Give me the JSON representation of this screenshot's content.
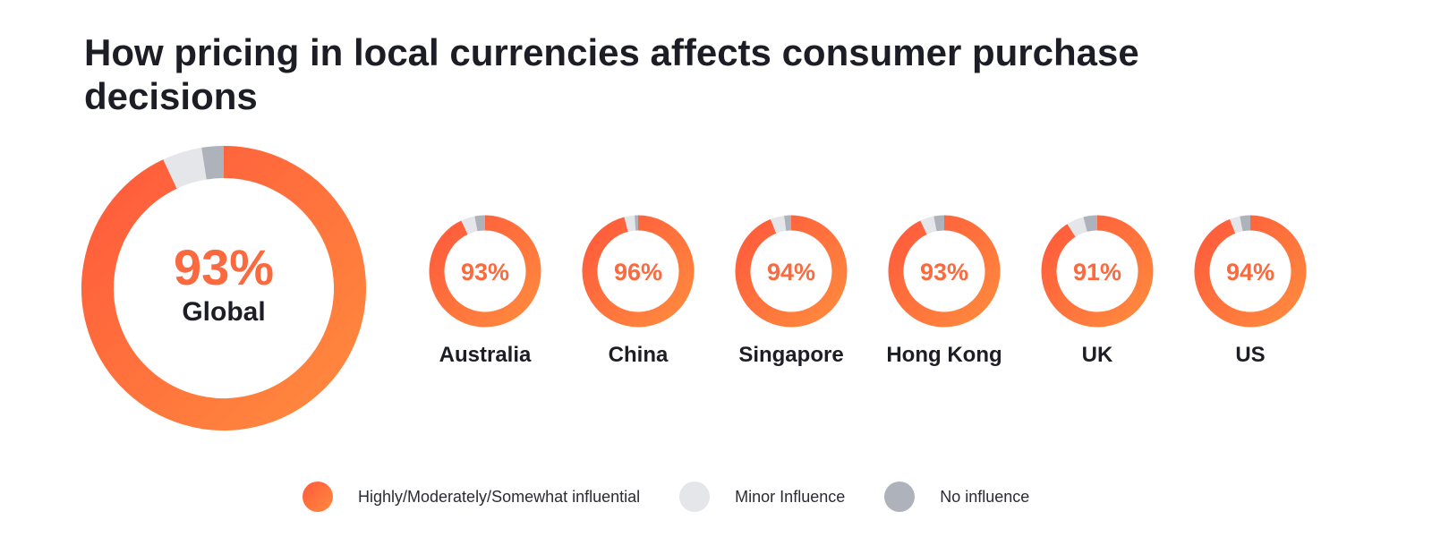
{
  "chart_data": {
    "type": "pie",
    "title": "How pricing in local currencies affects consumer purchase decisions",
    "colors": {
      "influential_start": "#ff5a3c",
      "influential_end": "#ff8a3d",
      "minor": "#e4e6ea",
      "none": "#aeb2ba",
      "percent_text": "#fb6a3f"
    },
    "legend": [
      {
        "label": "Highly/Moderately/Somewhat influential",
        "color": "#ff6a3f"
      },
      {
        "label": "Minor Influence",
        "color": "#e4e6ea"
      },
      {
        "label": "No influence",
        "color": "#aeb2ba"
      }
    ],
    "charts": [
      {
        "region": "Global",
        "percent_label": "93%",
        "influential": 93,
        "minor": 4.5,
        "none": 2.5
      },
      {
        "region": "Australia",
        "percent_label": "93%",
        "influential": 93,
        "minor": 4,
        "none": 3
      },
      {
        "region": "China",
        "percent_label": "96%",
        "influential": 96,
        "minor": 3,
        "none": 1
      },
      {
        "region": "Singapore",
        "percent_label": "94%",
        "influential": 94,
        "minor": 4,
        "none": 2
      },
      {
        "region": "Hong Kong",
        "percent_label": "93%",
        "influential": 93,
        "minor": 4,
        "none": 3
      },
      {
        "region": "UK",
        "percent_label": "91%",
        "influential": 91,
        "minor": 5,
        "none": 4
      },
      {
        "region": "US",
        "percent_label": "94%",
        "influential": 94,
        "minor": 3,
        "none": 3
      }
    ]
  }
}
